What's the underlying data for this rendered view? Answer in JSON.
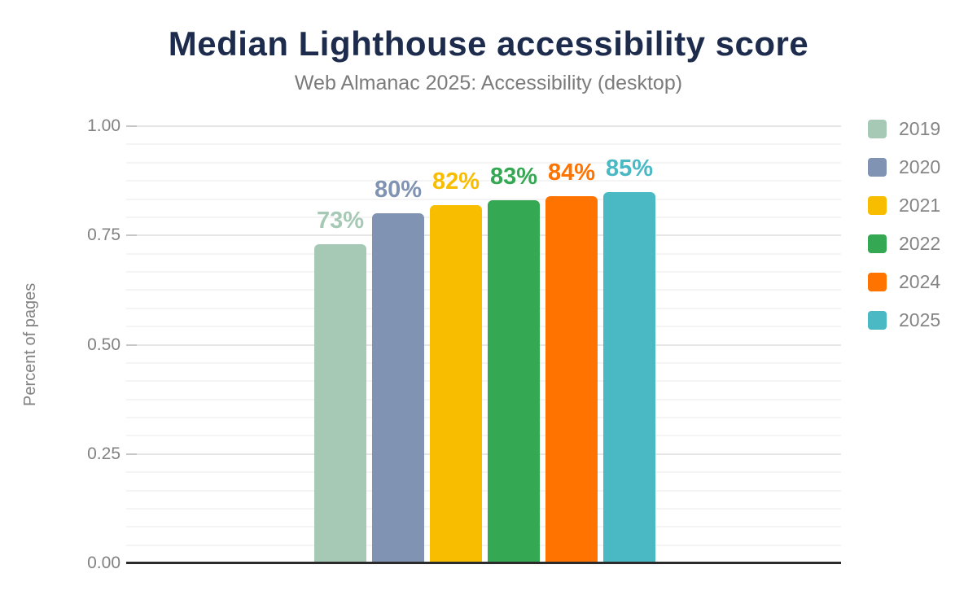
{
  "chart_data": {
    "type": "bar",
    "title": "Median Lighthouse accessibility score",
    "subtitle": "Web Almanac 2025: Accessibility (desktop)",
    "categories": [
      "2019",
      "2020",
      "2021",
      "2022",
      "2024",
      "2025"
    ],
    "values": [
      0.73,
      0.8,
      0.82,
      0.83,
      0.84,
      0.85
    ],
    "bar_labels": [
      "73%",
      "80%",
      "82%",
      "83%",
      "84%",
      "85%"
    ],
    "colors": [
      "#a6c9b6",
      "#8093b2",
      "#f9bd00",
      "#34a853",
      "#ff7300",
      "#4ab9c4"
    ],
    "xlabel": "",
    "ylabel": "Percent of pages",
    "ylim": [
      0,
      1
    ],
    "yticks": [
      "0.00",
      "0.25",
      "0.50",
      "0.75",
      "1.00"
    ],
    "grid": "horizontal major gridlines at 0.25 with faint minor gridlines between, plot background white",
    "legend_position": "right",
    "legend": [
      "2019",
      "2020",
      "2021",
      "2022",
      "2024",
      "2025"
    ]
  },
  "colors": {
    "title_text": "#1d2b4c",
    "subtitle_text": "#7b7b7b",
    "axis_text": "#828282",
    "axis_line": "#2b2b2b",
    "major_gridline": "#e6e6e6",
    "minor_gridline": "#f4f4f4",
    "background": "#ffffff"
  }
}
